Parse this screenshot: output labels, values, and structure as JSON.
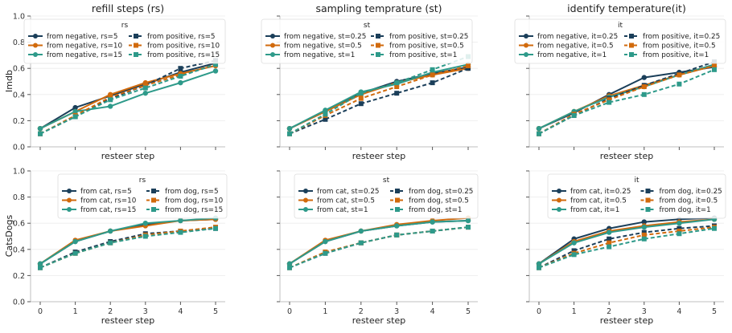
{
  "figure": {
    "row_labels": [
      "Imdb",
      "CatsDogs"
    ]
  },
  "chart_data": [
    {
      "type": "line",
      "title": "refill steps (rs)",
      "xlabel": "resteer step",
      "ylabel": "Imdb",
      "x": [
        0,
        1,
        2,
        3,
        4,
        5
      ],
      "ylim": [
        0.0,
        1.0
      ],
      "yticks": [
        "0.0",
        "0.2",
        "0.4",
        "0.6",
        "0.8",
        "1.0"
      ],
      "show_xticklabels": false,
      "show_yticklabels": true,
      "grid": true,
      "legend": {
        "title": "rs",
        "placement": "top-center",
        "columns": 2
      },
      "series": [
        {
          "name": "from negative, rs=5",
          "color": "#1b3f5a",
          "dashed": false,
          "marker": "circle",
          "values": [
            0.14,
            0.3,
            0.39,
            0.48,
            0.57,
            0.64
          ]
        },
        {
          "name": "from negative, rs=10",
          "color": "#d16a0c",
          "dashed": false,
          "marker": "circle",
          "values": [
            0.14,
            0.27,
            0.4,
            0.49,
            0.56,
            0.62
          ]
        },
        {
          "name": "from negative, rs=15",
          "color": "#2e9a8a",
          "dashed": false,
          "marker": "circle",
          "values": [
            0.14,
            0.27,
            0.31,
            0.41,
            0.49,
            0.58
          ]
        },
        {
          "name": "from positive, rs=5",
          "color": "#1b3f5a",
          "dashed": true,
          "marker": "square",
          "values": [
            0.1,
            0.23,
            0.37,
            0.47,
            0.6,
            0.66
          ]
        },
        {
          "name": "from positive, rs=10",
          "color": "#d16a0c",
          "dashed": true,
          "marker": "square",
          "values": [
            0.1,
            0.24,
            0.38,
            0.47,
            0.55,
            0.63
          ]
        },
        {
          "name": "from positive, rs=15",
          "color": "#2e9a8a",
          "dashed": true,
          "marker": "square",
          "values": [
            0.1,
            0.23,
            0.36,
            0.45,
            0.54,
            0.63
          ]
        }
      ]
    },
    {
      "type": "line",
      "title": "sampling temprature (st)",
      "xlabel": "resteer step",
      "ylabel": "",
      "x": [
        0,
        1,
        2,
        3,
        4,
        5
      ],
      "ylim": [
        0.0,
        1.0
      ],
      "yticks": [
        "0.0",
        "0.2",
        "0.4",
        "0.6",
        "0.8",
        "1.0"
      ],
      "show_xticklabels": false,
      "show_yticklabels": false,
      "grid": true,
      "legend": {
        "title": "st",
        "placement": "top-center",
        "columns": 2
      },
      "series": [
        {
          "name": "from negative, st=0.25",
          "color": "#1b3f5a",
          "dashed": false,
          "marker": "circle",
          "values": [
            0.14,
            0.27,
            0.41,
            0.5,
            0.56,
            0.61
          ]
        },
        {
          "name": "from negative, st=0.5",
          "color": "#d16a0c",
          "dashed": false,
          "marker": "circle",
          "values": [
            0.14,
            0.27,
            0.4,
            0.49,
            0.55,
            0.6
          ]
        },
        {
          "name": "from negative, st=1",
          "color": "#2e9a8a",
          "dashed": false,
          "marker": "circle",
          "values": [
            0.14,
            0.28,
            0.42,
            0.48,
            0.57,
            0.63
          ]
        },
        {
          "name": "from positive, st=0.25",
          "color": "#1b3f5a",
          "dashed": true,
          "marker": "square",
          "values": [
            0.1,
            0.21,
            0.33,
            0.41,
            0.49,
            0.6
          ]
        },
        {
          "name": "from positive, st=0.5",
          "color": "#d16a0c",
          "dashed": true,
          "marker": "square",
          "values": [
            0.1,
            0.24,
            0.37,
            0.46,
            0.55,
            0.62
          ]
        },
        {
          "name": "from positive, st=1",
          "color": "#2e9a8a",
          "dashed": true,
          "marker": "square",
          "values": [
            0.1,
            0.25,
            0.41,
            0.49,
            0.59,
            0.69
          ]
        }
      ]
    },
    {
      "type": "line",
      "title": "identify temperature(it)",
      "xlabel": "resteer step",
      "ylabel": "",
      "x": [
        0,
        1,
        2,
        3,
        4,
        5
      ],
      "ylim": [
        0.0,
        1.0
      ],
      "yticks": [
        "0.0",
        "0.2",
        "0.4",
        "0.6",
        "0.8",
        "1.0"
      ],
      "show_xticklabels": false,
      "show_yticklabels": false,
      "grid": true,
      "legend": {
        "title": "it",
        "placement": "top-center",
        "columns": 2
      },
      "series": [
        {
          "name": "from negative, it=0.25",
          "color": "#1b3f5a",
          "dashed": false,
          "marker": "circle",
          "values": [
            0.14,
            0.26,
            0.4,
            0.53,
            0.57,
            0.61
          ]
        },
        {
          "name": "from negative, it=0.5",
          "color": "#d16a0c",
          "dashed": false,
          "marker": "circle",
          "values": [
            0.14,
            0.27,
            0.39,
            0.47,
            0.55,
            0.62
          ]
        },
        {
          "name": "from negative, it=1",
          "color": "#2e9a8a",
          "dashed": false,
          "marker": "circle",
          "values": [
            0.14,
            0.27,
            0.38,
            0.46,
            0.55,
            0.63
          ]
        },
        {
          "name": "from positive, it=0.25",
          "color": "#1b3f5a",
          "dashed": true,
          "marker": "square",
          "values": [
            0.1,
            0.24,
            0.37,
            0.47,
            0.56,
            0.65
          ]
        },
        {
          "name": "from positive, it=0.5",
          "color": "#d16a0c",
          "dashed": true,
          "marker": "square",
          "values": [
            0.1,
            0.25,
            0.36,
            0.46,
            0.55,
            0.62
          ]
        },
        {
          "name": "from positive, it=1",
          "color": "#2e9a8a",
          "dashed": true,
          "marker": "square",
          "values": [
            0.1,
            0.24,
            0.34,
            0.4,
            0.48,
            0.59
          ]
        }
      ]
    },
    {
      "type": "line",
      "title": "",
      "xlabel": "resteer step",
      "ylabel": "CatsDogs",
      "x": [
        0,
        1,
        2,
        3,
        4,
        5
      ],
      "ylim": [
        0.0,
        1.0
      ],
      "yticks": [
        "0.0",
        "0.2",
        "0.4",
        "0.6",
        "0.8",
        "1.0"
      ],
      "show_xticklabels": true,
      "show_yticklabels": true,
      "grid": true,
      "legend": {
        "title": "rs",
        "placement": "upper-right",
        "columns": 2
      },
      "series": [
        {
          "name": "from cat, rs=5",
          "color": "#1b3f5a",
          "dashed": false,
          "marker": "circle",
          "values": [
            0.29,
            0.46,
            0.54,
            0.59,
            0.62,
            0.63
          ]
        },
        {
          "name": "from cat, rs=10",
          "color": "#d16a0c",
          "dashed": false,
          "marker": "circle",
          "values": [
            0.29,
            0.47,
            0.54,
            0.58,
            0.62,
            0.63
          ]
        },
        {
          "name": "from cat, rs=15",
          "color": "#2e9a8a",
          "dashed": false,
          "marker": "circle",
          "values": [
            0.29,
            0.46,
            0.54,
            0.6,
            0.62,
            0.64
          ]
        },
        {
          "name": "from dog, rs=5",
          "color": "#1b3f5a",
          "dashed": true,
          "marker": "square",
          "values": [
            0.26,
            0.38,
            0.46,
            0.52,
            0.54,
            0.56
          ]
        },
        {
          "name": "from dog, rs=10",
          "color": "#d16a0c",
          "dashed": true,
          "marker": "square",
          "values": [
            0.26,
            0.37,
            0.45,
            0.51,
            0.54,
            0.57
          ]
        },
        {
          "name": "from dog, rs=15",
          "color": "#2e9a8a",
          "dashed": true,
          "marker": "square",
          "values": [
            0.26,
            0.37,
            0.45,
            0.5,
            0.53,
            0.56
          ]
        }
      ]
    },
    {
      "type": "line",
      "title": "",
      "xlabel": "resteer step",
      "ylabel": "",
      "x": [
        0,
        1,
        2,
        3,
        4,
        5
      ],
      "ylim": [
        0.0,
        1.0
      ],
      "yticks": [
        "0.0",
        "0.2",
        "0.4",
        "0.6",
        "0.8",
        "1.0"
      ],
      "show_xticklabels": true,
      "show_yticklabels": false,
      "grid": true,
      "legend": {
        "title": "st",
        "placement": "upper-right",
        "columns": 2
      },
      "series": [
        {
          "name": "from cat, st=0.25",
          "color": "#1b3f5a",
          "dashed": false,
          "marker": "circle",
          "values": [
            0.29,
            0.46,
            0.54,
            0.58,
            0.61,
            0.62
          ]
        },
        {
          "name": "from cat, st=0.5",
          "color": "#d16a0c",
          "dashed": false,
          "marker": "circle",
          "values": [
            0.29,
            0.47,
            0.54,
            0.59,
            0.62,
            0.64
          ]
        },
        {
          "name": "from cat, st=1",
          "color": "#2e9a8a",
          "dashed": false,
          "marker": "circle",
          "values": [
            0.29,
            0.46,
            0.54,
            0.58,
            0.61,
            0.62
          ]
        },
        {
          "name": "from dog, st=0.25",
          "color": "#1b3f5a",
          "dashed": true,
          "marker": "square",
          "values": [
            0.26,
            0.37,
            0.45,
            0.51,
            0.54,
            0.57
          ]
        },
        {
          "name": "from dog, st=0.5",
          "color": "#d16a0c",
          "dashed": true,
          "marker": "square",
          "values": [
            0.26,
            0.38,
            0.45,
            0.51,
            0.54,
            0.57
          ]
        },
        {
          "name": "from dog, st=1",
          "color": "#2e9a8a",
          "dashed": true,
          "marker": "square",
          "values": [
            0.26,
            0.37,
            0.45,
            0.51,
            0.54,
            0.57
          ]
        }
      ]
    },
    {
      "type": "line",
      "title": "",
      "xlabel": "resteer step",
      "ylabel": "",
      "x": [
        0,
        1,
        2,
        3,
        4,
        5
      ],
      "ylim": [
        0.0,
        1.0
      ],
      "yticks": [
        "0.0",
        "0.2",
        "0.4",
        "0.6",
        "0.8",
        "1.0"
      ],
      "show_xticklabels": true,
      "show_yticklabels": false,
      "grid": true,
      "legend": {
        "title": "it",
        "placement": "upper-right",
        "columns": 2
      },
      "series": [
        {
          "name": "from cat, it=0.25",
          "color": "#1b3f5a",
          "dashed": false,
          "marker": "circle",
          "values": [
            0.29,
            0.48,
            0.56,
            0.61,
            0.63,
            0.64
          ]
        },
        {
          "name": "from cat, it=0.5",
          "color": "#d16a0c",
          "dashed": false,
          "marker": "circle",
          "values": [
            0.29,
            0.46,
            0.54,
            0.58,
            0.61,
            0.63
          ]
        },
        {
          "name": "from cat, it=1",
          "color": "#2e9a8a",
          "dashed": false,
          "marker": "circle",
          "values": [
            0.29,
            0.45,
            0.53,
            0.57,
            0.6,
            0.63
          ]
        },
        {
          "name": "from dog, it=0.25",
          "color": "#1b3f5a",
          "dashed": true,
          "marker": "square",
          "values": [
            0.26,
            0.39,
            0.48,
            0.53,
            0.56,
            0.58
          ]
        },
        {
          "name": "from dog, it=0.5",
          "color": "#d16a0c",
          "dashed": true,
          "marker": "square",
          "values": [
            0.26,
            0.37,
            0.45,
            0.51,
            0.54,
            0.57
          ]
        },
        {
          "name": "from dog, it=1",
          "color": "#2e9a8a",
          "dashed": true,
          "marker": "square",
          "values": [
            0.26,
            0.36,
            0.42,
            0.48,
            0.52,
            0.56
          ]
        }
      ]
    }
  ]
}
